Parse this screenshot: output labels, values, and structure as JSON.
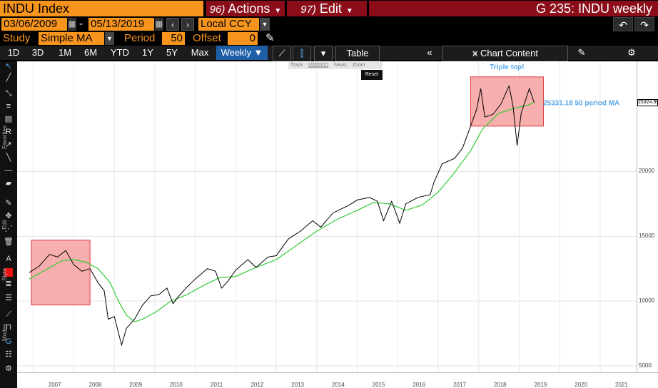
{
  "header": {
    "security": "INDU Index",
    "actions_num": "96)",
    "actions_label": "Actions",
    "edit_num": "97)",
    "edit_label": "Edit",
    "window_title": "G 235: INDU weekly"
  },
  "dates": {
    "start": "03/06/2009",
    "separator": "-",
    "end": "05/13/2019",
    "currency": "Local CCY"
  },
  "study": {
    "label": "Study",
    "value": "Simple MA",
    "period_label": "Period",
    "period_value": "50",
    "offset_label": "Offset",
    "offset_value": "0"
  },
  "toolbar": {
    "ranges": [
      "1D",
      "3D",
      "1M",
      "6M",
      "YTD",
      "1Y",
      "5Y",
      "Max"
    ],
    "frequency": "Weekly ▼",
    "table_label": "Table",
    "chart_content_label": "Chart Content"
  },
  "popover": {
    "track": "Track",
    "annotate": "Annotate",
    "news": "News",
    "zoom": "Zoom",
    "reset": "Reset"
  },
  "left_sections": [
    "Favorites",
    "Edit",
    "Style",
    "Modes"
  ],
  "annotations": {
    "triple_top": "Triple top!",
    "ma_label": "25331.18 50 period MA",
    "last_price": "25324.99"
  },
  "colors": {
    "price": "#000000",
    "ma": "#33cc33",
    "box_fill": "#f4a0a0",
    "box_stroke": "#e23a3a",
    "annotation": "#5aa8e8",
    "accent": "#f7941d",
    "menu": "#8b0d1a"
  },
  "chart_data": {
    "type": "line",
    "x_ticks": [
      "2007",
      "2008",
      "2009",
      "2010",
      "2011",
      "2012",
      "2013",
      "2014",
      "2015",
      "2016",
      "2017",
      "2018",
      "2019",
      "2020",
      "2021"
    ],
    "y_ticks": [
      5000,
      10000,
      15000,
      20000
    ],
    "ylim": [
      4500,
      28500
    ],
    "series": [
      {
        "name": "INDU",
        "points": [
          [
            2006.9,
            12200
          ],
          [
            2007.15,
            12700
          ],
          [
            2007.4,
            13600
          ],
          [
            2007.6,
            13400
          ],
          [
            2007.8,
            13900
          ],
          [
            2008.0,
            12800
          ],
          [
            2008.2,
            12300
          ],
          [
            2008.4,
            12500
          ],
          [
            2008.6,
            11400
          ],
          [
            2008.75,
            10800
          ],
          [
            2008.85,
            8600
          ],
          [
            2009.0,
            8800
          ],
          [
            2009.18,
            6600
          ],
          [
            2009.3,
            7900
          ],
          [
            2009.5,
            8600
          ],
          [
            2009.7,
            9700
          ],
          [
            2009.9,
            10400
          ],
          [
            2010.1,
            10500
          ],
          [
            2010.3,
            11000
          ],
          [
            2010.45,
            9800
          ],
          [
            2010.6,
            10400
          ],
          [
            2010.8,
            11100
          ],
          [
            2011.0,
            11700
          ],
          [
            2011.3,
            12500
          ],
          [
            2011.5,
            12300
          ],
          [
            2011.65,
            11000
          ],
          [
            2011.8,
            11500
          ],
          [
            2012.0,
            12400
          ],
          [
            2012.3,
            13200
          ],
          [
            2012.5,
            12600
          ],
          [
            2012.8,
            13400
          ],
          [
            2013.0,
            13500
          ],
          [
            2013.3,
            14800
          ],
          [
            2013.6,
            15400
          ],
          [
            2013.9,
            16200
          ],
          [
            2014.1,
            15700
          ],
          [
            2014.4,
            16800
          ],
          [
            2014.6,
            17100
          ],
          [
            2014.8,
            17400
          ],
          [
            2015.0,
            17800
          ],
          [
            2015.3,
            18000
          ],
          [
            2015.5,
            17700
          ],
          [
            2015.65,
            16200
          ],
          [
            2015.85,
            17700
          ],
          [
            2016.05,
            16000
          ],
          [
            2016.2,
            17500
          ],
          [
            2016.5,
            18000
          ],
          [
            2016.8,
            18200
          ],
          [
            2016.9,
            19200
          ],
          [
            2017.1,
            20600
          ],
          [
            2017.4,
            21000
          ],
          [
            2017.6,
            21800
          ],
          [
            2017.8,
            23500
          ],
          [
            2017.95,
            24800
          ],
          [
            2018.05,
            26400
          ],
          [
            2018.15,
            24200
          ],
          [
            2018.35,
            24400
          ],
          [
            2018.55,
            25200
          ],
          [
            2018.75,
            26600
          ],
          [
            2018.85,
            25000
          ],
          [
            2018.95,
            22000
          ],
          [
            2019.05,
            24500
          ],
          [
            2019.25,
            26400
          ],
          [
            2019.37,
            25325
          ]
        ]
      },
      {
        "name": "50 period MA",
        "points": [
          [
            2006.9,
            11700
          ],
          [
            2007.3,
            12400
          ],
          [
            2007.7,
            13100
          ],
          [
            2008.0,
            13200
          ],
          [
            2008.3,
            13000
          ],
          [
            2008.6,
            12500
          ],
          [
            2008.9,
            11400
          ],
          [
            2009.1,
            10000
          ],
          [
            2009.3,
            8900
          ],
          [
            2009.5,
            8400
          ],
          [
            2009.7,
            8600
          ],
          [
            2010.0,
            9100
          ],
          [
            2010.4,
            10000
          ],
          [
            2010.8,
            10500
          ],
          [
            2011.2,
            11200
          ],
          [
            2011.6,
            11800
          ],
          [
            2012.0,
            11900
          ],
          [
            2012.5,
            12600
          ],
          [
            2013.0,
            13200
          ],
          [
            2013.5,
            14300
          ],
          [
            2014.0,
            15400
          ],
          [
            2014.5,
            16300
          ],
          [
            2015.0,
            17000
          ],
          [
            2015.4,
            17600
          ],
          [
            2015.8,
            17500
          ],
          [
            2016.2,
            17000
          ],
          [
            2016.6,
            17400
          ],
          [
            2017.0,
            18400
          ],
          [
            2017.4,
            19900
          ],
          [
            2017.8,
            21600
          ],
          [
            2018.1,
            23300
          ],
          [
            2018.5,
            24500
          ],
          [
            2018.9,
            24900
          ],
          [
            2019.2,
            25100
          ],
          [
            2019.37,
            25331
          ]
        ]
      }
    ]
  }
}
